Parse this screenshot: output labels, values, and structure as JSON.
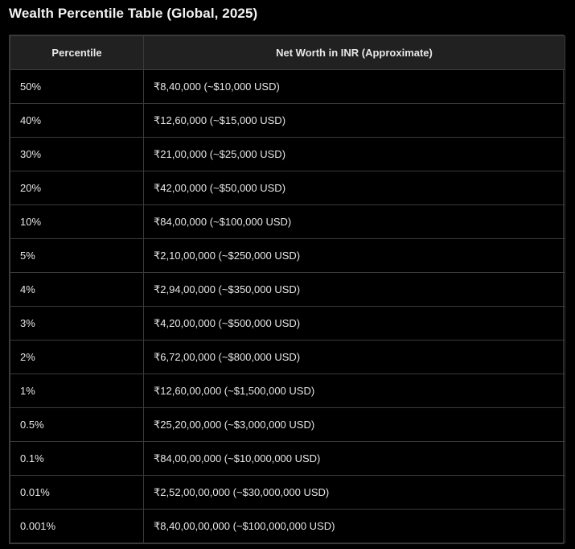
{
  "title": "Wealth Percentile Table (Global, 2025)",
  "table": {
    "headers": [
      "Percentile",
      "Net Worth in INR (Approximate)"
    ],
    "rows": [
      [
        "50%",
        "₹8,40,000 (~$10,000 USD)"
      ],
      [
        "40%",
        "₹12,60,000 (~$15,000 USD)"
      ],
      [
        "30%",
        "₹21,00,000 (~$25,000 USD)"
      ],
      [
        "20%",
        "₹42,00,000 (~$50,000 USD)"
      ],
      [
        "10%",
        "₹84,00,000 (~$100,000 USD)"
      ],
      [
        "5%",
        "₹2,10,00,000 (~$250,000 USD)"
      ],
      [
        "4%",
        "₹2,94,00,000 (~$350,000 USD)"
      ],
      [
        "3%",
        "₹4,20,00,000 (~$500,000 USD)"
      ],
      [
        "2%",
        "₹6,72,00,000 (~$800,000 USD)"
      ],
      [
        "1%",
        "₹12,60,00,000 (~$1,500,000 USD)"
      ],
      [
        "0.5%",
        "₹25,20,00,000 (~$3,000,000 USD)"
      ],
      [
        "0.1%",
        "₹84,00,00,000 (~$10,000,000 USD)"
      ],
      [
        "0.01%",
        "₹2,52,00,00,000 (~$30,000,000 USD)"
      ],
      [
        "0.001%",
        "₹8,40,00,00,000 (~$100,000,000 USD)"
      ]
    ]
  }
}
